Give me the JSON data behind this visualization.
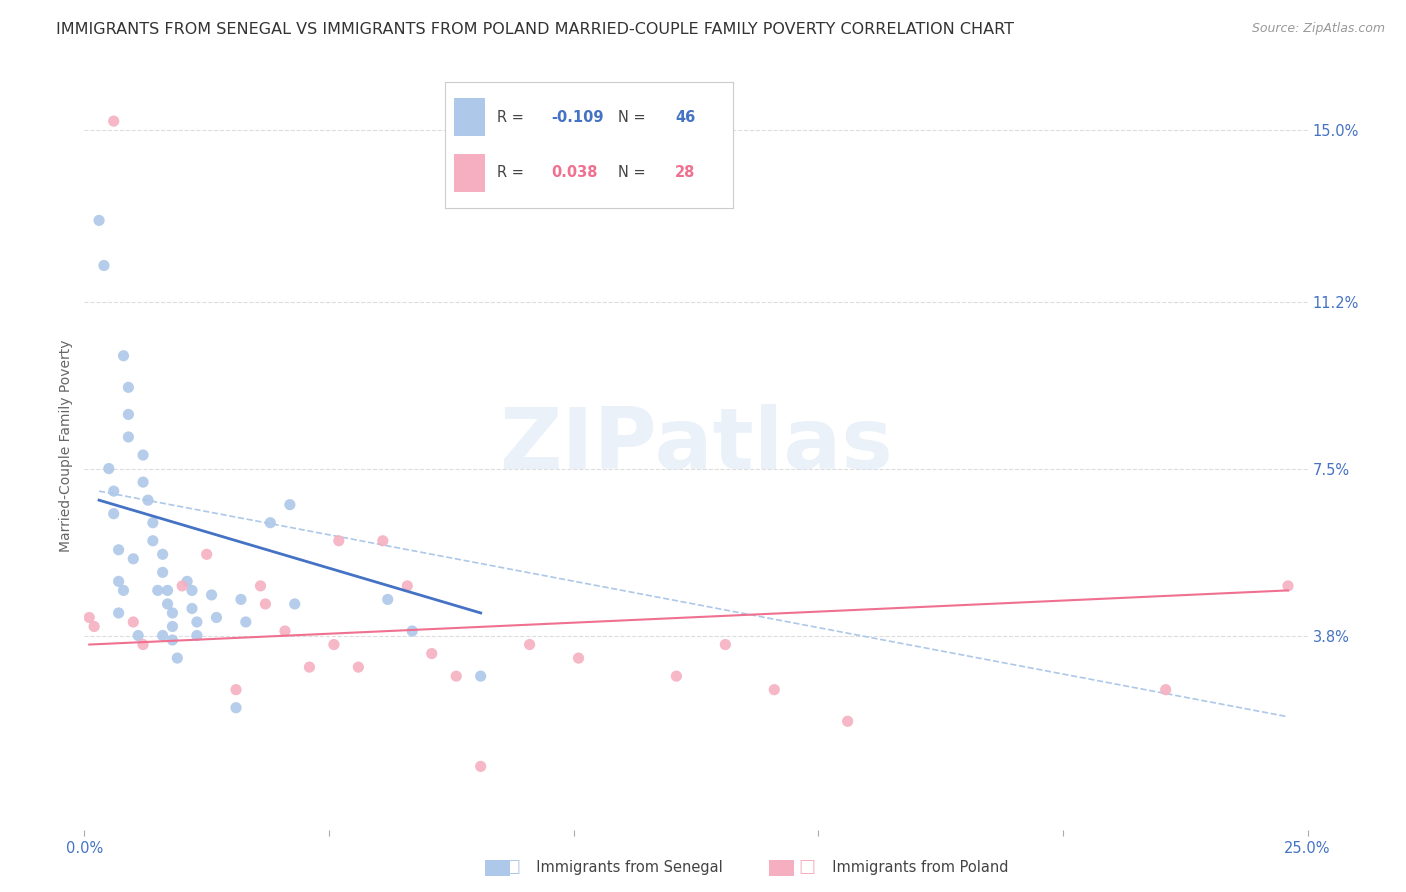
{
  "title": "IMMIGRANTS FROM SENEGAL VS IMMIGRANTS FROM POLAND MARRIED-COUPLE FAMILY POVERTY CORRELATION CHART",
  "source": "Source: ZipAtlas.com",
  "ylabel": "Married-Couple Family Poverty",
  "xlim": [
    0.0,
    0.25
  ],
  "ylim": [
    -0.005,
    0.165
  ],
  "ytick_labels_right": [
    "15.0%",
    "11.2%",
    "7.5%",
    "3.8%"
  ],
  "ytick_vals_right": [
    0.15,
    0.112,
    0.075,
    0.038
  ],
  "senegal_R": -0.109,
  "senegal_N": 46,
  "poland_R": 0.038,
  "poland_N": 28,
  "senegal_color": "#adc8e8",
  "poland_color": "#f5afc0",
  "senegal_line_color": "#4472c4",
  "poland_line_color": "#f07090",
  "dashed_line_color": "#adc8e8",
  "watermark_text": "ZIPatlas",
  "senegal_x": [
    0.003,
    0.004,
    0.008,
    0.009,
    0.009,
    0.009,
    0.012,
    0.012,
    0.013,
    0.014,
    0.014,
    0.016,
    0.016,
    0.017,
    0.017,
    0.018,
    0.018,
    0.018,
    0.019,
    0.021,
    0.022,
    0.022,
    0.023,
    0.023,
    0.026,
    0.027,
    0.032,
    0.033,
    0.038,
    0.042,
    0.043,
    0.005,
    0.006,
    0.006,
    0.007,
    0.007,
    0.007,
    0.008,
    0.01,
    0.011,
    0.015,
    0.016,
    0.062,
    0.067,
    0.081,
    0.031
  ],
  "senegal_y": [
    0.13,
    0.12,
    0.1,
    0.093,
    0.087,
    0.082,
    0.078,
    0.072,
    0.068,
    0.063,
    0.059,
    0.056,
    0.052,
    0.048,
    0.045,
    0.043,
    0.04,
    0.037,
    0.033,
    0.05,
    0.048,
    0.044,
    0.041,
    0.038,
    0.047,
    0.042,
    0.046,
    0.041,
    0.063,
    0.067,
    0.045,
    0.075,
    0.07,
    0.065,
    0.057,
    0.05,
    0.043,
    0.048,
    0.055,
    0.038,
    0.048,
    0.038,
    0.046,
    0.039,
    0.029,
    0.022
  ],
  "poland_x": [
    0.001,
    0.002,
    0.01,
    0.012,
    0.02,
    0.025,
    0.031,
    0.036,
    0.037,
    0.041,
    0.046,
    0.051,
    0.052,
    0.056,
    0.061,
    0.066,
    0.071,
    0.076,
    0.081,
    0.091,
    0.101,
    0.121,
    0.131,
    0.141,
    0.006,
    0.156,
    0.221,
    0.246
  ],
  "poland_y": [
    0.042,
    0.04,
    0.041,
    0.036,
    0.049,
    0.056,
    0.026,
    0.049,
    0.045,
    0.039,
    0.031,
    0.036,
    0.059,
    0.031,
    0.059,
    0.049,
    0.034,
    0.029,
    0.009,
    0.036,
    0.033,
    0.029,
    0.036,
    0.026,
    0.152,
    0.019,
    0.026,
    0.049
  ],
  "senegal_line_x": [
    0.003,
    0.081
  ],
  "senegal_line_y": [
    0.068,
    0.043
  ],
  "poland_line_x": [
    0.001,
    0.246
  ],
  "poland_line_y": [
    0.036,
    0.048
  ],
  "dashed_line_x": [
    0.003,
    0.246
  ],
  "dashed_line_y": [
    0.07,
    0.02
  ],
  "grid_color": "#dddddd",
  "background_color": "#ffffff",
  "title_fontsize": 11.5,
  "axis_label_fontsize": 10,
  "tick_fontsize": 10.5,
  "legend_fontsize": 11
}
